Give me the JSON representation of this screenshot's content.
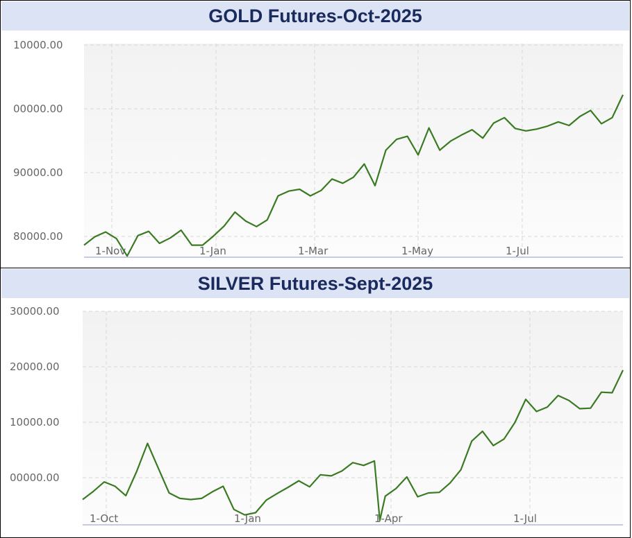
{
  "colors": {
    "line": "#3a7a22",
    "title_bg": "#dbe3f4",
    "title_text": "#1a2a5c",
    "plot_bg_top": "#f2f2f2",
    "plot_bg_bottom": "#fcfcfc",
    "grid": "#d7d7d7",
    "axis": "#c6cbe3"
  },
  "chart_data": [
    {
      "type": "line",
      "title": "GOLD Futures-Oct-2025",
      "xlabel": "",
      "ylabel": "",
      "x_ticks": [
        "1-Nov",
        "1-Jan",
        "1-Mar",
        "1-May",
        "1-Jul"
      ],
      "y_ticks": [
        "10000.00",
        "00000.00",
        "90000.00",
        "80000.00"
      ],
      "ylim": [
        77000,
        112500
      ],
      "grid": true,
      "series": [
        {
          "x": [
            0,
            0.02,
            0.04,
            0.06,
            0.08,
            0.1,
            0.12,
            0.14,
            0.16,
            0.18,
            0.2,
            0.22,
            0.24,
            0.26,
            0.28,
            0.3,
            0.32,
            0.34,
            0.36,
            0.38,
            0.4,
            0.42,
            0.44,
            0.46,
            0.48,
            0.5,
            0.52,
            0.54,
            0.56,
            0.58,
            0.6,
            0.62,
            0.64,
            0.66,
            0.68,
            0.7,
            0.72,
            0.74,
            0.76,
            0.78,
            0.8,
            0.82,
            0.84,
            0.86,
            0.88,
            0.9,
            0.92,
            0.94,
            0.96,
            0.98,
            1
          ],
          "values": [
            79000,
            80400,
            81200,
            80100,
            77200,
            80600,
            81300,
            79300,
            80200,
            81500,
            79000,
            79000,
            80500,
            82200,
            84500,
            83000,
            82100,
            83200,
            87200,
            88000,
            88300,
            87200,
            88100,
            90000,
            89300,
            90300,
            92500,
            88900,
            94800,
            96600,
            97100,
            94000,
            98500,
            94800,
            96300,
            97300,
            98200,
            96800,
            99300,
            100200,
            98400,
            98000,
            98300,
            98800,
            99500,
            98900,
            100400,
            101400,
            99200,
            100200,
            104000
          ]
        }
      ]
    },
    {
      "type": "line",
      "title": "SILVER Futures-Sept-2025",
      "xlabel": "",
      "ylabel": "",
      "x_ticks": [
        "1-Oct",
        "1-Jan",
        "1-Apr",
        "1-Jul"
      ],
      "y_ticks": [
        "30000.00",
        "20000.00",
        "10000.00",
        "00000.00"
      ],
      "ylim": [
        92200,
        131000
      ],
      "grid": true,
      "series": [
        {
          "x": [
            0,
            0.02,
            0.04,
            0.06,
            0.08,
            0.1,
            0.12,
            0.14,
            0.16,
            0.18,
            0.2,
            0.22,
            0.24,
            0.26,
            0.28,
            0.3,
            0.32,
            0.34,
            0.36,
            0.38,
            0.4,
            0.42,
            0.44,
            0.46,
            0.48,
            0.5,
            0.52,
            0.54,
            0.55,
            0.56,
            0.58,
            0.6,
            0.62,
            0.64,
            0.66,
            0.68,
            0.7,
            0.72,
            0.74,
            0.76,
            0.78,
            0.8,
            0.82,
            0.84,
            0.86,
            0.88,
            0.9,
            0.92,
            0.94,
            0.96,
            0.98,
            1
          ],
          "values": [
            96800,
            98300,
            100000,
            99200,
            97500,
            101900,
            107000,
            102500,
            98000,
            97000,
            96800,
            97000,
            98200,
            99200,
            95000,
            94000,
            94400,
            96700,
            97900,
            99000,
            100200,
            99100,
            101300,
            101100,
            102000,
            103500,
            103000,
            103800,
            93000,
            97400,
            98800,
            100900,
            97300,
            98000,
            98100,
            99800,
            102200,
            107400,
            109200,
            106600,
            107800,
            110800,
            115000,
            112800,
            113600,
            115700,
            114800,
            113300,
            113400,
            116300,
            116200,
            120300
          ]
        }
      ]
    }
  ]
}
